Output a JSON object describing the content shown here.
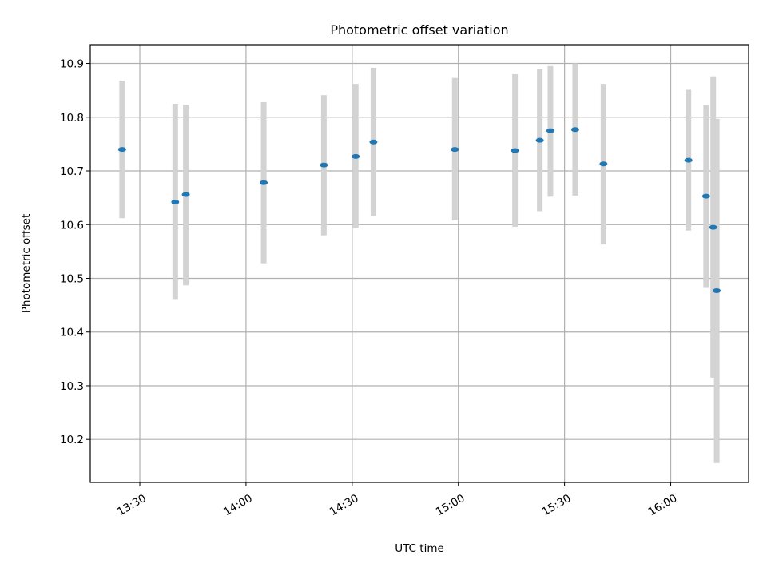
{
  "chart_data": {
    "type": "scatter",
    "title": "Photometric offset variation",
    "xlabel": "UTC time",
    "ylabel": "Photometric offset",
    "xlim": [
      "13:16",
      "16:22"
    ],
    "ylim": [
      10.12,
      10.935
    ],
    "grid": true,
    "x_ticks": [
      "13:30",
      "14:00",
      "14:30",
      "15:00",
      "15:30",
      "16:00"
    ],
    "y_ticks": [
      "10.2",
      "10.3",
      "10.4",
      "10.5",
      "10.6",
      "10.7",
      "10.8",
      "10.9"
    ],
    "colors": {
      "marker": "#1f77b4",
      "errorbar": "#d3d3d3",
      "grid": "#b0b0b0"
    },
    "points": [
      {
        "time": "13:25",
        "value": 10.74,
        "low": 10.612,
        "high": 10.868
      },
      {
        "time": "13:40",
        "value": 10.642,
        "low": 10.46,
        "high": 10.825
      },
      {
        "time": "13:43",
        "value": 10.656,
        "low": 10.487,
        "high": 10.823
      },
      {
        "time": "14:05",
        "value": 10.678,
        "low": 10.528,
        "high": 10.828
      },
      {
        "time": "14:22",
        "value": 10.711,
        "low": 10.58,
        "high": 10.841
      },
      {
        "time": "14:31",
        "value": 10.727,
        "low": 10.593,
        "high": 10.862
      },
      {
        "time": "14:36",
        "value": 10.754,
        "low": 10.616,
        "high": 10.892
      },
      {
        "time": "14:59",
        "value": 10.74,
        "low": 10.608,
        "high": 10.873
      },
      {
        "time": "15:16",
        "value": 10.738,
        "low": 10.596,
        "high": 10.88
      },
      {
        "time": "15:23",
        "value": 10.757,
        "low": 10.625,
        "high": 10.889
      },
      {
        "time": "15:26",
        "value": 10.775,
        "low": 10.652,
        "high": 10.895
      },
      {
        "time": "15:33",
        "value": 10.777,
        "low": 10.654,
        "high": 10.9
      },
      {
        "time": "15:41",
        "value": 10.713,
        "low": 10.563,
        "high": 10.862
      },
      {
        "time": "16:05",
        "value": 10.72,
        "low": 10.589,
        "high": 10.851
      },
      {
        "time": "16:10",
        "value": 10.653,
        "low": 10.482,
        "high": 10.822
      },
      {
        "time": "16:12",
        "value": 10.595,
        "low": 10.315,
        "high": 10.876
      },
      {
        "time": "16:13",
        "value": 10.477,
        "low": 10.156,
        "high": 10.797
      }
    ]
  }
}
